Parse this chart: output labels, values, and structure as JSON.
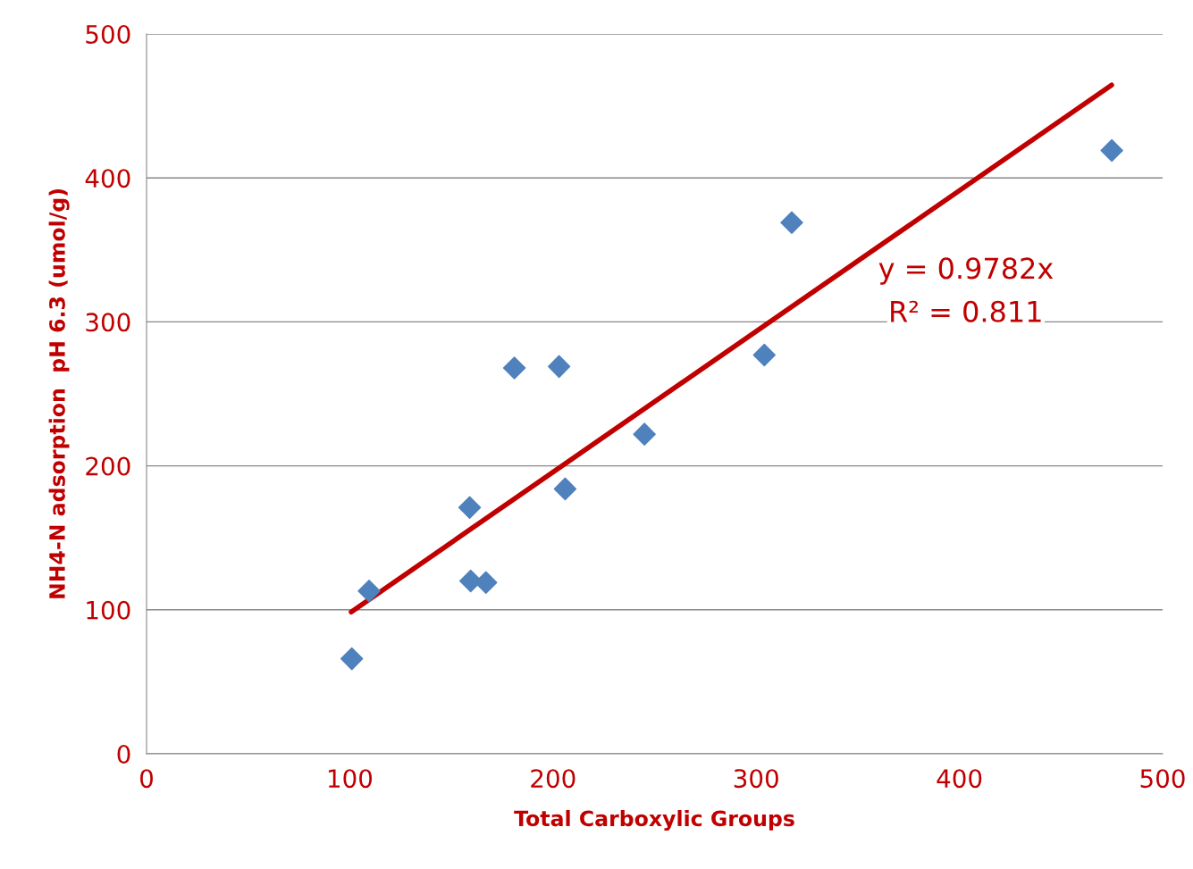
{
  "chart_data": {
    "type": "scatter",
    "xlabel": "Total Carboxylic Groups",
    "ylabel": "NH4-N adsorption  pH 6.3 (umol/g)",
    "xlim": [
      0,
      500
    ],
    "xticks": [
      0,
      100,
      200,
      300,
      400,
      500
    ],
    "ylim": [
      0,
      500
    ],
    "yticks": [
      0,
      100,
      200,
      300,
      400,
      500
    ],
    "grid": "y",
    "legend": false,
    "series": [
      {
        "marker": "diamond",
        "color": "#4f81bd",
        "x": [
          101,
          109.5,
          159,
          159.5,
          167,
          181,
          203,
          206,
          245,
          304,
          317.5,
          475
        ],
        "values": [
          66,
          113,
          171,
          120,
          119,
          268,
          269,
          184,
          222,
          277,
          369,
          419
        ]
      },
      {
        "type": "line",
        "marker": "none",
        "color": "#c00000",
        "x": [
          100.7,
          474.9
        ],
        "values": [
          98.5,
          464.5
        ]
      }
    ],
    "annotations": [
      "y = 0.9782x",
      "R² = 0.811"
    ]
  }
}
